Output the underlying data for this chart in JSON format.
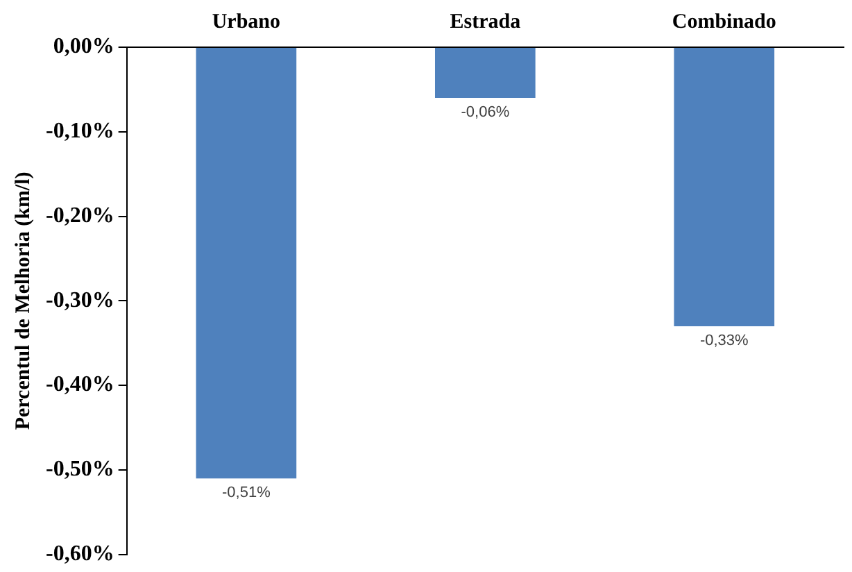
{
  "chart_data": {
    "type": "bar",
    "ylabel": "Percentul de Melhoria (km/l)",
    "categories": [
      "Urbano",
      "Estrada",
      "Combinado"
    ],
    "values": [
      -0.51,
      -0.06,
      -0.33
    ],
    "color": "#4f81bd",
    "value_labels": [
      "-0,51%",
      "-0,06%",
      "-0,33%"
    ],
    "ylim": [
      -0.6,
      0
    ],
    "yticks": [
      {
        "value": 0,
        "label": "0,00%"
      },
      {
        "value": -0.1,
        "label": "-0,10%"
      },
      {
        "value": -0.2,
        "label": "-0,20%"
      },
      {
        "value": -0.3,
        "label": "-0,30%"
      },
      {
        "value": -0.4,
        "label": "-0,40%"
      },
      {
        "value": -0.5,
        "label": "-0,50%"
      },
      {
        "value": -0.6,
        "label": "-0,60%"
      }
    ],
    "grid": false,
    "legend": false
  }
}
